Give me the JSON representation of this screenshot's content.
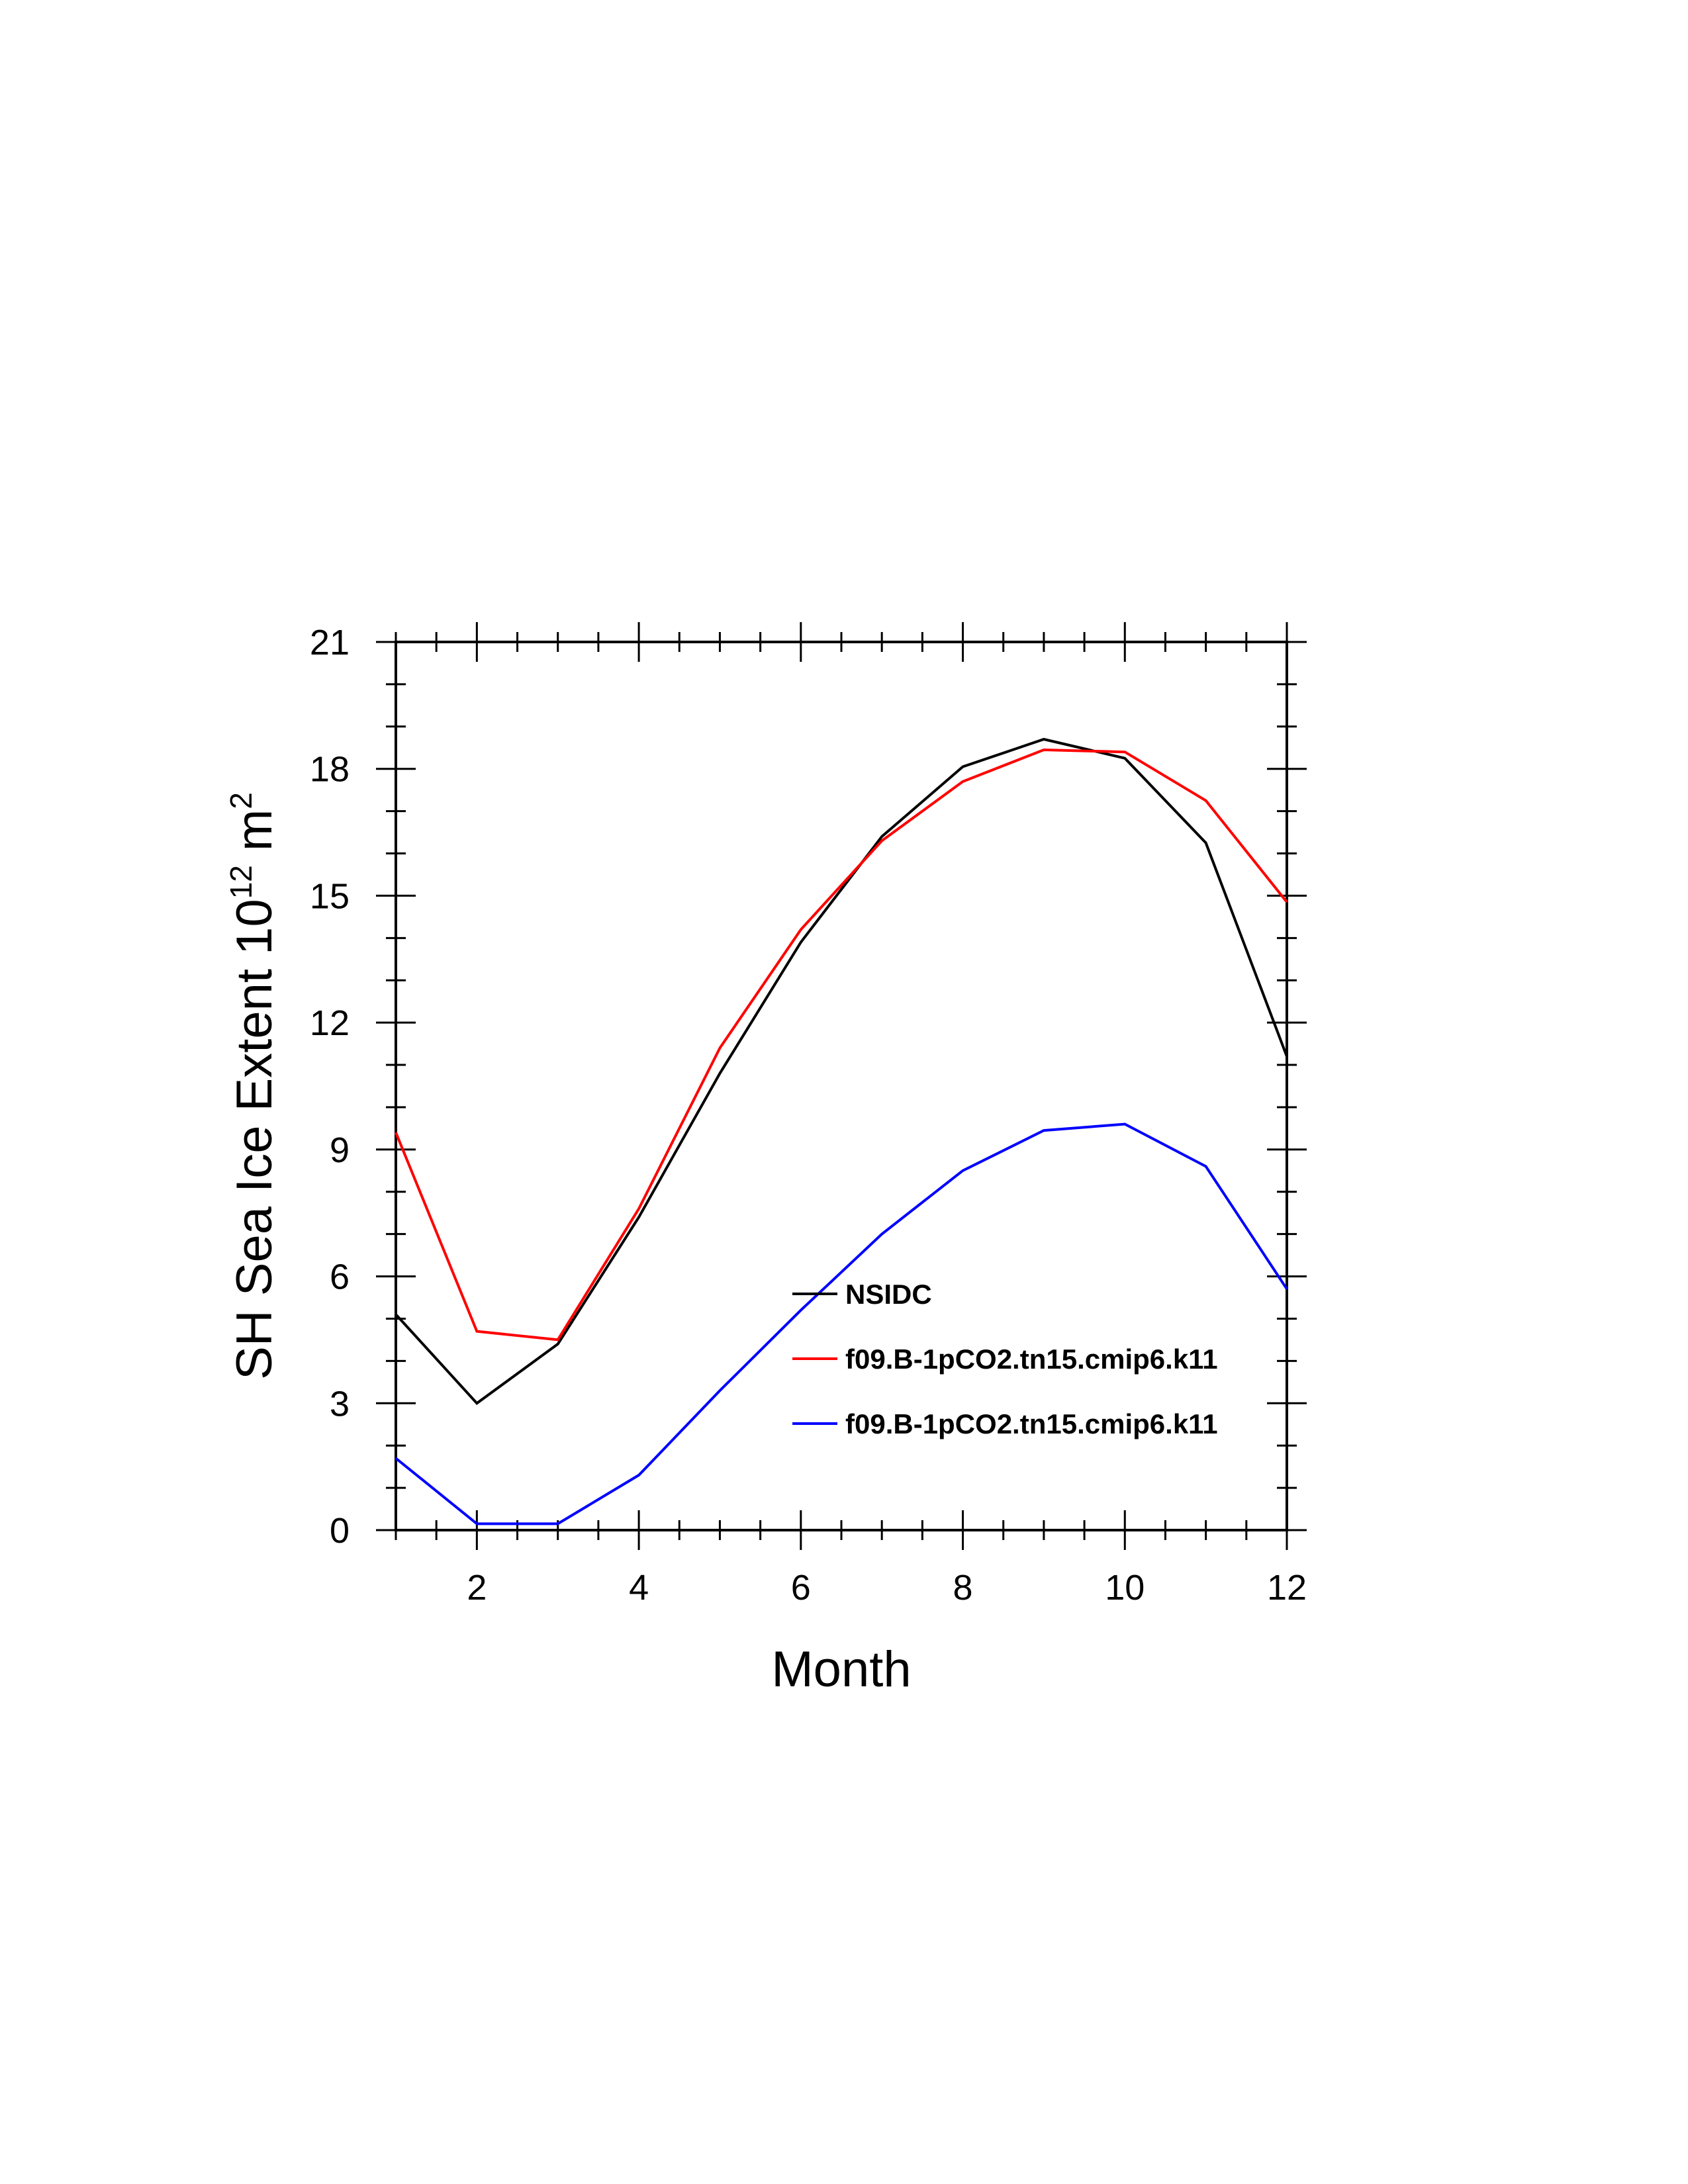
{
  "chart_data": {
    "type": "line",
    "title": "",
    "xlabel": "Month",
    "ylabel": {
      "text": "SH Sea Ice Extent 10",
      "exponent1": "12",
      "unit": " m",
      "exponent2": "2"
    },
    "xlim": [
      1,
      12
    ],
    "ylim": [
      0,
      21
    ],
    "xticks": [
      2,
      4,
      6,
      8,
      10,
      12
    ],
    "yticks": [
      0,
      3,
      6,
      9,
      12,
      15,
      18,
      21
    ],
    "grid": false,
    "legend_position": "lower-right-inside",
    "x": [
      1,
      2,
      3,
      4,
      5,
      6,
      7,
      8,
      9,
      10,
      11,
      12
    ],
    "series": [
      {
        "name": "NSIDC",
        "color": "#000000",
        "values": [
          5.1,
          3.0,
          4.4,
          7.4,
          10.8,
          13.9,
          16.4,
          18.05,
          18.7,
          18.25,
          16.25,
          11.2
        ]
      },
      {
        "name": "f09.B-1pCO2.tn15.cmip6.k11",
        "color": "#ff0000",
        "values": [
          9.4,
          4.7,
          4.5,
          7.6,
          11.4,
          14.2,
          16.3,
          17.7,
          18.45,
          18.4,
          17.25,
          14.85
        ]
      },
      {
        "name": "f09.B-1pCO2.tn15.cmip6.k11",
        "color": "#0000ff",
        "values": [
          1.7,
          0.15,
          0.15,
          1.3,
          3.3,
          5.2,
          7.0,
          8.5,
          9.45,
          9.6,
          8.6,
          5.7
        ]
      }
    ]
  }
}
